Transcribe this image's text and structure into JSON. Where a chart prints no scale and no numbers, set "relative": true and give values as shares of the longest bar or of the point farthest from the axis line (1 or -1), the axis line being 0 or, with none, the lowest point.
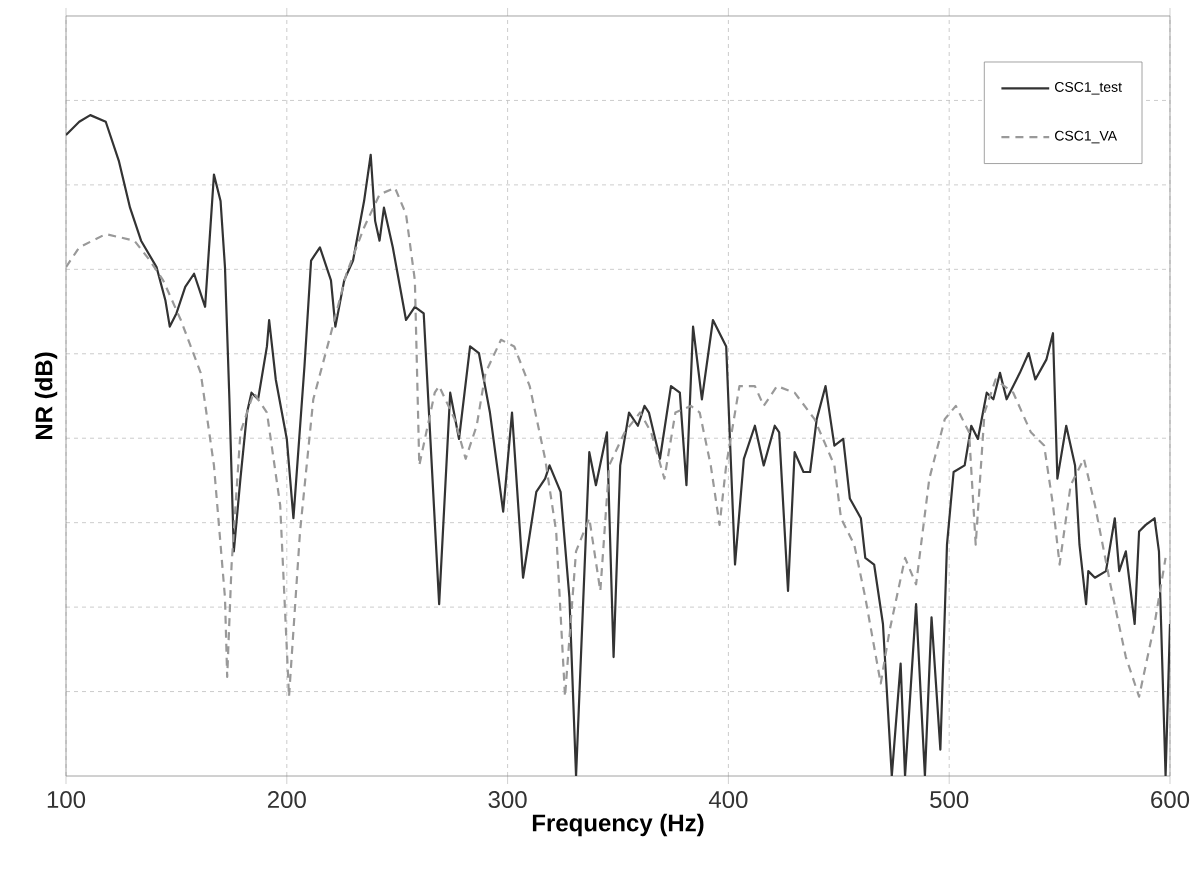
{
  "chart_data": {
    "type": "line",
    "relative": true,
    "xlabel": "Frequency (Hz)",
    "ylabel": "NR (dB)",
    "xlim": [
      100,
      600
    ],
    "xticks": [
      100,
      200,
      300,
      400,
      500,
      600
    ],
    "grid": true,
    "legend": "top right",
    "series": [
      {
        "name": "CSC1_test",
        "color": "#333333",
        "line_style": "solid",
        "x": [
          100,
          106,
          111,
          118,
          124,
          129,
          134,
          141,
          145,
          147,
          150,
          154,
          158,
          163,
          167,
          170,
          172,
          174,
          176,
          179,
          182,
          184,
          187,
          191,
          192,
          195,
          200,
          203,
          208,
          211,
          215,
          220,
          222,
          226,
          230,
          235,
          238,
          240,
          242,
          244,
          248,
          254,
          258,
          262,
          269,
          274,
          278,
          283,
          287,
          292,
          298,
          302,
          307,
          313,
          317,
          319,
          324,
          328,
          331,
          337,
          340,
          345,
          348,
          351,
          355,
          359,
          362,
          364,
          369,
          374,
          378,
          381,
          384,
          388,
          393,
          399,
          403,
          407,
          412,
          416,
          421,
          423,
          427,
          430,
          434,
          437,
          440,
          444,
          448,
          452,
          455,
          460,
          462,
          466,
          470,
          474,
          478,
          480,
          485,
          489,
          492,
          496,
          499,
          502,
          507,
          510,
          513,
          517,
          520,
          523,
          526,
          529,
          532,
          536,
          539,
          544,
          547,
          549,
          553,
          557,
          559,
          562,
          563,
          566,
          571,
          575,
          577,
          580,
          584,
          586,
          589,
          593,
          595,
          598,
          600
        ],
        "values": [
          0.97,
          0.99,
          1.0,
          0.99,
          0.93,
          0.86,
          0.81,
          0.77,
          0.72,
          0.68,
          0.7,
          0.74,
          0.76,
          0.71,
          0.91,
          0.87,
          0.77,
          0.57,
          0.34,
          0.45,
          0.55,
          0.58,
          0.57,
          0.65,
          0.69,
          0.6,
          0.51,
          0.39,
          0.62,
          0.78,
          0.8,
          0.75,
          0.68,
          0.75,
          0.78,
          0.87,
          0.94,
          0.84,
          0.81,
          0.86,
          0.8,
          0.69,
          0.71,
          0.7,
          0.26,
          0.58,
          0.51,
          0.65,
          0.64,
          0.55,
          0.4,
          0.55,
          0.3,
          0.43,
          0.45,
          0.47,
          0.43,
          0.27,
          0.0,
          0.49,
          0.44,
          0.52,
          0.18,
          0.47,
          0.55,
          0.53,
          0.56,
          0.55,
          0.48,
          0.59,
          0.58,
          0.44,
          0.68,
          0.57,
          0.69,
          0.65,
          0.32,
          0.48,
          0.53,
          0.47,
          0.53,
          0.52,
          0.28,
          0.49,
          0.46,
          0.46,
          0.54,
          0.59,
          0.5,
          0.51,
          0.42,
          0.39,
          0.33,
          0.32,
          0.23,
          0.0,
          0.17,
          0.0,
          0.26,
          0.0,
          0.24,
          0.04,
          0.35,
          0.46,
          0.47,
          0.53,
          0.51,
          0.58,
          0.57,
          0.61,
          0.57,
          0.59,
          0.61,
          0.64,
          0.6,
          0.63,
          0.67,
          0.45,
          0.53,
          0.47,
          0.35,
          0.26,
          0.31,
          0.3,
          0.31,
          0.39,
          0.31,
          0.34,
          0.23,
          0.37,
          0.38,
          0.39,
          0.34,
          0.0,
          0.23
        ]
      },
      {
        "name": "CSC1_VA",
        "color": "#999999",
        "line_style": "dashed",
        "x": [
          100,
          106,
          118,
          131,
          138,
          144,
          152,
          161,
          167,
          172,
          173,
          175,
          179,
          185,
          191,
          197,
          201,
          206,
          212,
          220,
          227,
          235,
          242,
          249,
          254,
          258,
          260,
          267,
          269,
          276,
          281,
          286,
          290,
          297,
          303,
          310,
          317,
          322,
          326,
          331,
          337,
          342,
          346,
          353,
          360,
          365,
          371,
          376,
          383,
          387,
          392,
          396,
          399,
          405,
          412,
          416,
          422,
          430,
          439,
          448,
          451,
          457,
          462,
          469,
          473,
          480,
          485,
          491,
          498,
          503,
          509,
          512,
          516,
          521,
          529,
          537,
          543,
          547,
          550,
          555,
          561,
          566,
          573,
          580,
          586,
          593,
          598
        ],
        "values": [
          0.77,
          0.8,
          0.82,
          0.81,
          0.78,
          0.75,
          0.69,
          0.61,
          0.47,
          0.27,
          0.15,
          0.32,
          0.52,
          0.58,
          0.55,
          0.41,
          0.12,
          0.37,
          0.57,
          0.67,
          0.76,
          0.83,
          0.88,
          0.89,
          0.85,
          0.75,
          0.47,
          0.58,
          0.59,
          0.54,
          0.48,
          0.53,
          0.61,
          0.66,
          0.65,
          0.59,
          0.48,
          0.37,
          0.12,
          0.34,
          0.39,
          0.28,
          0.47,
          0.52,
          0.55,
          0.52,
          0.45,
          0.55,
          0.56,
          0.55,
          0.47,
          0.38,
          0.47,
          0.59,
          0.59,
          0.56,
          0.59,
          0.58,
          0.54,
          0.47,
          0.39,
          0.35,
          0.27,
          0.14,
          0.22,
          0.33,
          0.29,
          0.45,
          0.54,
          0.56,
          0.52,
          0.35,
          0.55,
          0.6,
          0.58,
          0.52,
          0.5,
          0.41,
          0.32,
          0.44,
          0.48,
          0.41,
          0.29,
          0.18,
          0.12,
          0.23,
          0.33
        ]
      }
    ]
  }
}
